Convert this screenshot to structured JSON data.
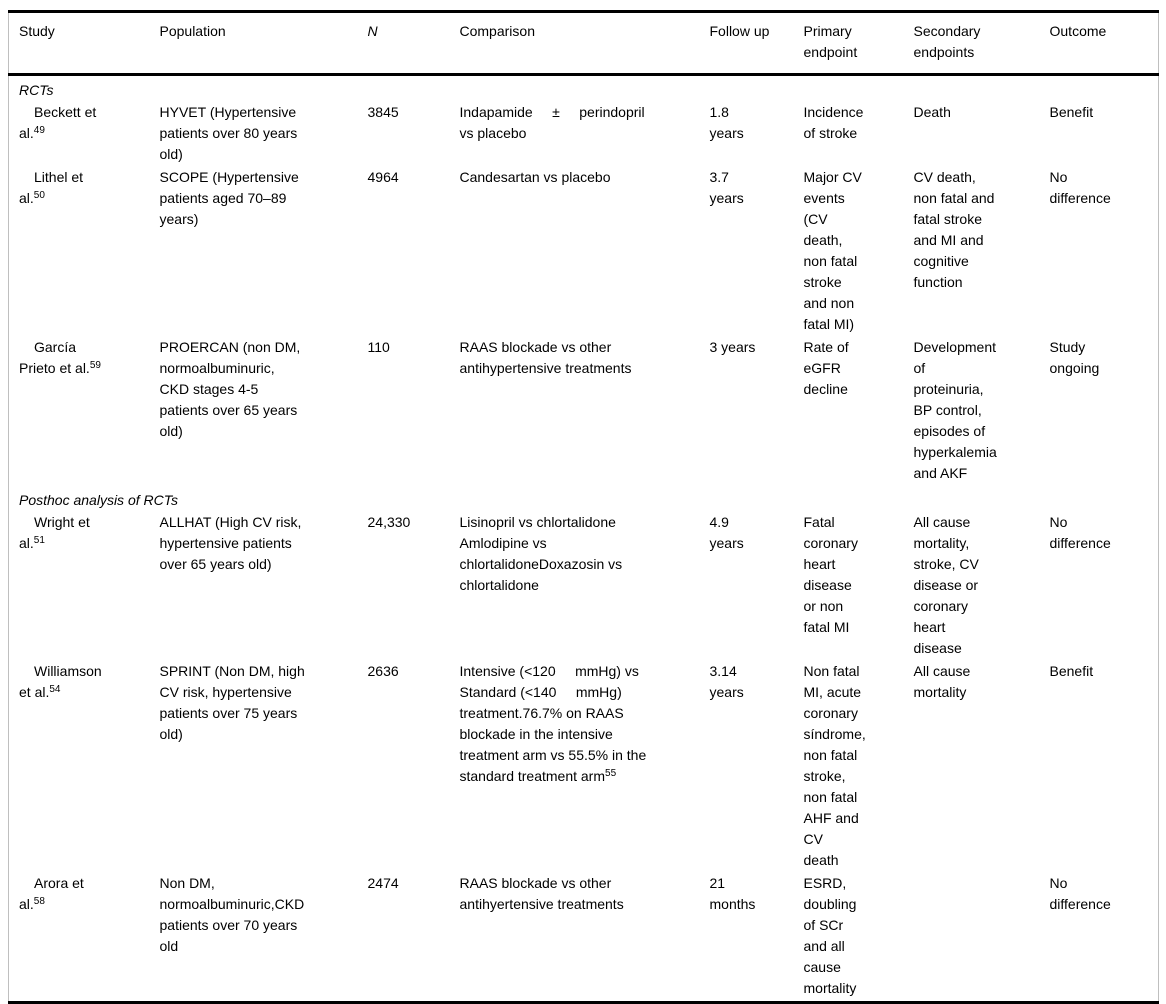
{
  "colors": {
    "rule": "#000000",
    "frame": "#bfbfbf",
    "text": "#000000",
    "background": "#ffffff"
  },
  "header": {
    "columns": [
      "Study",
      "Population",
      "N",
      "Comparison",
      "Follow up",
      "Primary\nendpoint",
      "Secondary\nendpoints",
      "Outcome"
    ]
  },
  "sections": [
    {
      "label": "RCTs",
      "rows": [
        {
          "study": "Beckett et\nal.",
          "study_ref": "49",
          "population": "HYVET (Hypertensive\npatients over 80 years\nold)",
          "n": "3845",
          "comparison": "Indapamide     ±     perindopril\nvs placebo",
          "follow_up": "1.8\nyears",
          "primary": "Incidence\nof stroke",
          "secondary": "Death",
          "outcome": "Benefit"
        },
        {
          "study": "Lithel et\nal.",
          "study_ref": "50",
          "population": "SCOPE (Hypertensive\npatients aged 70–89\nyears)",
          "n": "4964",
          "comparison": "Candesartan vs placebo",
          "follow_up": "3.7\nyears",
          "primary": "Major CV\nevents\n(CV\ndeath,\nnon fatal\nstroke\nand non\nfatal MI)",
          "secondary": "CV death,\nnon fatal and\nfatal stroke\nand MI and\ncognitive\nfunction",
          "outcome": "No\ndifference"
        },
        {
          "study": "García\nPrieto et al.",
          "study_ref": "59",
          "population": "PROERCAN (non DM,\nnormoalbuminuric,\nCKD stages 4-5\npatients over 65 years\nold)",
          "n": "110",
          "comparison": "RAAS blockade vs other\nantihypertensive treatments",
          "follow_up": "3 years",
          "primary": "Rate of\neGFR\ndecline",
          "secondary": "Development\nof\nproteinuria,\nBP control,\nepisodes of\nhyperkalemia\nand AKF",
          "outcome": "Study\nongoing"
        }
      ]
    },
    {
      "label": "Posthoc analysis of RCTs",
      "rows": [
        {
          "study": "Wright et\nal.",
          "study_ref": "51",
          "population": "ALLHAT (High CV risk,\nhypertensive patients\nover 65 years old)",
          "n": "24,330",
          "comparison": "Lisinopril vs chlortalidone\nAmlodipine vs\nchlortalidoneDoxazosin vs\nchlortalidone",
          "follow_up": "4.9\nyears",
          "primary": "Fatal\ncoronary\nheart\ndisease\nor non\nfatal MI",
          "secondary": "All cause\nmortality,\nstroke, CV\ndisease or\ncoronary\nheart\ndisease",
          "outcome": "No\ndifference"
        },
        {
          "study": "Williamson\net al.",
          "study_ref": "54",
          "population": "SPRINT (Non DM, high\nCV risk, hypertensive\npatients over 75 years\nold)",
          "n": "2636",
          "comparison": "Intensive (<120     mmHg) vs\nStandard (<140     mmHg)\ntreatment.76.7% on RAAS\nblockade in the intensive\ntreatment arm vs 55.5% in the\nstandard treatment arm",
          "comparison_ref": "55",
          "follow_up": "3.14\nyears",
          "primary": "Non fatal\nMI, acute\ncoronary\nsíndrome,\nnon fatal\nstroke,\nnon fatal\nAHF and\nCV\ndeath",
          "secondary": "All cause\nmortality",
          "outcome": "Benefit"
        },
        {
          "study": "Arora et\nal.",
          "study_ref": "58",
          "population": "Non DM,\nnormoalbuminuric,CKD\npatients over 70 years\nold",
          "n": "2474",
          "comparison": "RAAS blockade vs other\nantihyertensive treatments",
          "follow_up": "21\nmonths",
          "primary": "ESRD,\ndoubling\nof SCr\nand all\ncause\nmortality",
          "secondary": "",
          "outcome": "No\ndifference"
        }
      ]
    }
  ]
}
